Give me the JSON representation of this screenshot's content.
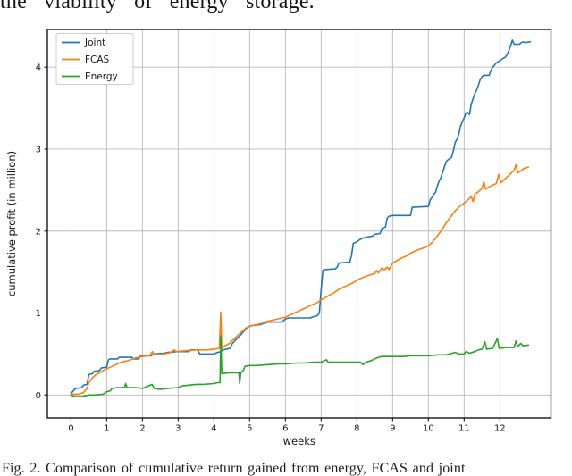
{
  "page": {
    "top_text_fragment": "the viability of energy storage.",
    "caption": "Fig. 2.  Comparison of cumulative return gained from energy, FCAS and joint"
  },
  "chart_data": {
    "type": "line",
    "title": "",
    "xlabel": "weeks",
    "ylabel": "cumulative profit (in million)",
    "xlim": [
      -0.66,
      13.43
    ],
    "ylim": [
      -0.28,
      4.46
    ],
    "xticks": [
      0,
      1,
      2,
      3,
      4,
      5,
      6,
      7,
      8,
      9,
      10,
      11,
      12
    ],
    "yticks": [
      0,
      1,
      2,
      3,
      4
    ],
    "grid": true,
    "legend_position": "upper-left",
    "colors": {
      "grid": "#b8b8b8",
      "spine": "#151515",
      "text": "#151515",
      "legend_border": "#cccccc"
    },
    "series": [
      {
        "name": "Joint",
        "color": "#1f77b4",
        "points": [
          [
            0,
            0.02
          ],
          [
            0.05,
            0.04
          ],
          [
            0.1,
            0.07
          ],
          [
            0.15,
            0.08
          ],
          [
            0.3,
            0.09
          ],
          [
            0.35,
            0.12
          ],
          [
            0.45,
            0.13
          ],
          [
            0.5,
            0.25
          ],
          [
            0.6,
            0.26
          ],
          [
            0.65,
            0.29
          ],
          [
            0.8,
            0.3
          ],
          [
            0.85,
            0.33
          ],
          [
            1.0,
            0.34
          ],
          [
            1.05,
            0.43
          ],
          [
            1.1,
            0.44
          ],
          [
            1.3,
            0.44
          ],
          [
            1.35,
            0.46
          ],
          [
            1.7,
            0.46
          ],
          [
            1.75,
            0.44
          ],
          [
            1.9,
            0.44
          ],
          [
            1.95,
            0.48
          ],
          [
            2.25,
            0.48
          ],
          [
            2.3,
            0.5
          ],
          [
            2.6,
            0.51
          ],
          [
            2.7,
            0.52
          ],
          [
            3.0,
            0.53
          ],
          [
            3.3,
            0.53
          ],
          [
            3.35,
            0.55
          ],
          [
            3.55,
            0.55
          ],
          [
            3.6,
            0.5
          ],
          [
            4.0,
            0.5
          ],
          [
            4.1,
            0.52
          ],
          [
            4.2,
            0.53
          ],
          [
            4.25,
            0.55
          ],
          [
            4.45,
            0.57
          ],
          [
            4.5,
            0.62
          ],
          [
            4.6,
            0.67
          ],
          [
            4.7,
            0.71
          ],
          [
            4.8,
            0.76
          ],
          [
            4.9,
            0.81
          ],
          [
            5.0,
            0.84
          ],
          [
            5.1,
            0.85
          ],
          [
            5.3,
            0.86
          ],
          [
            5.45,
            0.88
          ],
          [
            5.5,
            0.89
          ],
          [
            5.9,
            0.89
          ],
          [
            6.0,
            0.93
          ],
          [
            6.1,
            0.94
          ],
          [
            6.7,
            0.94
          ],
          [
            6.75,
            0.95
          ],
          [
            6.9,
            0.97
          ],
          [
            6.95,
            1.0
          ],
          [
            7.0,
            1.28
          ],
          [
            7.05,
            1.52
          ],
          [
            7.1,
            1.53
          ],
          [
            7.4,
            1.54
          ],
          [
            7.45,
            1.56
          ],
          [
            7.5,
            1.61
          ],
          [
            7.8,
            1.62
          ],
          [
            7.85,
            1.7
          ],
          [
            7.9,
            1.85
          ],
          [
            8.0,
            1.87
          ],
          [
            8.1,
            1.9
          ],
          [
            8.2,
            1.92
          ],
          [
            8.45,
            1.94
          ],
          [
            8.5,
            1.96
          ],
          [
            8.65,
            1.97
          ],
          [
            8.7,
            2.03
          ],
          [
            8.8,
            2.05
          ],
          [
            8.85,
            2.16
          ],
          [
            8.9,
            2.18
          ],
          [
            9.0,
            2.19
          ],
          [
            9.5,
            2.19
          ],
          [
            9.55,
            2.29
          ],
          [
            10.0,
            2.3
          ],
          [
            10.05,
            2.38
          ],
          [
            10.1,
            2.41
          ],
          [
            10.15,
            2.45
          ],
          [
            10.2,
            2.47
          ],
          [
            10.25,
            2.55
          ],
          [
            10.3,
            2.61
          ],
          [
            10.35,
            2.65
          ],
          [
            10.4,
            2.72
          ],
          [
            10.5,
            2.85
          ],
          [
            10.55,
            2.87
          ],
          [
            10.65,
            2.9
          ],
          [
            10.7,
            2.98
          ],
          [
            10.75,
            3.08
          ],
          [
            10.8,
            3.12
          ],
          [
            10.85,
            3.18
          ],
          [
            10.9,
            3.28
          ],
          [
            10.95,
            3.33
          ],
          [
            11.0,
            3.38
          ],
          [
            11.05,
            3.44
          ],
          [
            11.1,
            3.45
          ],
          [
            11.15,
            3.42
          ],
          [
            11.2,
            3.55
          ],
          [
            11.3,
            3.68
          ],
          [
            11.35,
            3.72
          ],
          [
            11.4,
            3.78
          ],
          [
            11.45,
            3.85
          ],
          [
            11.5,
            3.88
          ],
          [
            11.55,
            3.9
          ],
          [
            11.7,
            3.9
          ],
          [
            11.75,
            3.96
          ],
          [
            11.8,
            4.0
          ],
          [
            11.9,
            4.05
          ],
          [
            12.0,
            4.08
          ],
          [
            12.1,
            4.11
          ],
          [
            12.15,
            4.12
          ],
          [
            12.2,
            4.15
          ],
          [
            12.25,
            4.2
          ],
          [
            12.3,
            4.26
          ],
          [
            12.35,
            4.33
          ],
          [
            12.4,
            4.28
          ],
          [
            12.55,
            4.28
          ],
          [
            12.6,
            4.3
          ],
          [
            12.65,
            4.31
          ],
          [
            12.7,
            4.3
          ],
          [
            12.85,
            4.31
          ]
        ]
      },
      {
        "name": "FCAS",
        "color": "#ff7f0e",
        "points": [
          [
            0,
            0.01
          ],
          [
            0.2,
            0.01
          ],
          [
            0.35,
            0.03
          ],
          [
            0.45,
            0.08
          ],
          [
            0.5,
            0.15
          ],
          [
            0.6,
            0.21
          ],
          [
            0.7,
            0.25
          ],
          [
            0.8,
            0.27
          ],
          [
            0.9,
            0.3
          ],
          [
            1.0,
            0.32
          ],
          [
            1.2,
            0.36
          ],
          [
            1.4,
            0.4
          ],
          [
            1.6,
            0.42
          ],
          [
            1.8,
            0.45
          ],
          [
            2.0,
            0.47
          ],
          [
            2.2,
            0.48
          ],
          [
            2.28,
            0.53
          ],
          [
            2.32,
            0.49
          ],
          [
            2.6,
            0.5
          ],
          [
            2.8,
            0.52
          ],
          [
            2.88,
            0.55
          ],
          [
            2.95,
            0.53
          ],
          [
            3.2,
            0.54
          ],
          [
            3.5,
            0.55
          ],
          [
            3.8,
            0.55
          ],
          [
            4.0,
            0.56
          ],
          [
            4.15,
            0.57
          ],
          [
            4.19,
            1.01
          ],
          [
            4.22,
            0.57
          ],
          [
            4.3,
            0.6
          ],
          [
            4.4,
            0.62
          ],
          [
            4.5,
            0.66
          ],
          [
            4.6,
            0.7
          ],
          [
            4.7,
            0.74
          ],
          [
            4.8,
            0.78
          ],
          [
            4.9,
            0.82
          ],
          [
            5.0,
            0.84
          ],
          [
            5.2,
            0.86
          ],
          [
            5.4,
            0.88
          ],
          [
            5.5,
            0.9
          ],
          [
            5.7,
            0.92
          ],
          [
            5.9,
            0.94
          ],
          [
            6.0,
            0.95
          ],
          [
            6.2,
            0.99
          ],
          [
            6.4,
            1.03
          ],
          [
            6.5,
            1.05
          ],
          [
            6.7,
            1.09
          ],
          [
            6.9,
            1.13
          ],
          [
            7.0,
            1.16
          ],
          [
            7.2,
            1.21
          ],
          [
            7.4,
            1.26
          ],
          [
            7.5,
            1.29
          ],
          [
            7.7,
            1.33
          ],
          [
            7.9,
            1.37
          ],
          [
            8.0,
            1.4
          ],
          [
            8.2,
            1.44
          ],
          [
            8.4,
            1.47
          ],
          [
            8.5,
            1.48
          ],
          [
            8.55,
            1.52
          ],
          [
            8.6,
            1.49
          ],
          [
            8.7,
            1.55
          ],
          [
            8.75,
            1.52
          ],
          [
            8.85,
            1.56
          ],
          [
            8.9,
            1.53
          ],
          [
            9.0,
            1.61
          ],
          [
            9.2,
            1.66
          ],
          [
            9.4,
            1.7
          ],
          [
            9.5,
            1.73
          ],
          [
            9.7,
            1.77
          ],
          [
            9.9,
            1.8
          ],
          [
            10.0,
            1.82
          ],
          [
            10.1,
            1.86
          ],
          [
            10.2,
            1.91
          ],
          [
            10.3,
            1.97
          ],
          [
            10.4,
            2.03
          ],
          [
            10.5,
            2.1
          ],
          [
            10.6,
            2.16
          ],
          [
            10.7,
            2.22
          ],
          [
            10.8,
            2.27
          ],
          [
            10.9,
            2.31
          ],
          [
            11.0,
            2.34
          ],
          [
            11.1,
            2.38
          ],
          [
            11.2,
            2.42
          ],
          [
            11.25,
            2.36
          ],
          [
            11.3,
            2.45
          ],
          [
            11.4,
            2.48
          ],
          [
            11.5,
            2.52
          ],
          [
            11.55,
            2.6
          ],
          [
            11.6,
            2.51
          ],
          [
            11.7,
            2.54
          ],
          [
            11.8,
            2.56
          ],
          [
            11.9,
            2.58
          ],
          [
            11.97,
            2.69
          ],
          [
            12.03,
            2.59
          ],
          [
            12.1,
            2.62
          ],
          [
            12.2,
            2.66
          ],
          [
            12.3,
            2.7
          ],
          [
            12.4,
            2.74
          ],
          [
            12.45,
            2.81
          ],
          [
            12.5,
            2.71
          ],
          [
            12.6,
            2.74
          ],
          [
            12.7,
            2.77
          ],
          [
            12.8,
            2.78
          ]
        ]
      },
      {
        "name": "Energy",
        "color": "#2ca02c",
        "points": [
          [
            0,
            0.0
          ],
          [
            0.1,
            -0.02
          ],
          [
            0.3,
            -0.02
          ],
          [
            0.5,
            0.0
          ],
          [
            0.7,
            0.0
          ],
          [
            0.9,
            0.01
          ],
          [
            1.0,
            0.04
          ],
          [
            1.1,
            0.05
          ],
          [
            1.15,
            0.08
          ],
          [
            1.3,
            0.09
          ],
          [
            1.5,
            0.09
          ],
          [
            1.53,
            0.14
          ],
          [
            1.57,
            0.09
          ],
          [
            1.8,
            0.09
          ],
          [
            2.0,
            0.08
          ],
          [
            2.27,
            0.13
          ],
          [
            2.33,
            0.08
          ],
          [
            2.5,
            0.07
          ],
          [
            2.7,
            0.08
          ],
          [
            3.0,
            0.09
          ],
          [
            3.1,
            0.11
          ],
          [
            3.3,
            0.12
          ],
          [
            3.5,
            0.13
          ],
          [
            3.7,
            0.13
          ],
          [
            4.0,
            0.14
          ],
          [
            4.1,
            0.15
          ],
          [
            4.17,
            0.15
          ],
          [
            4.19,
            0.72
          ],
          [
            4.22,
            0.26
          ],
          [
            4.4,
            0.27
          ],
          [
            4.6,
            0.27
          ],
          [
            4.7,
            0.27
          ],
          [
            4.72,
            0.14
          ],
          [
            4.75,
            0.27
          ],
          [
            4.82,
            0.3
          ],
          [
            4.87,
            0.35
          ],
          [
            5.0,
            0.36
          ],
          [
            5.2,
            0.36
          ],
          [
            5.5,
            0.37
          ],
          [
            5.8,
            0.38
          ],
          [
            6.0,
            0.38
          ],
          [
            6.3,
            0.39
          ],
          [
            6.5,
            0.39
          ],
          [
            6.8,
            0.4
          ],
          [
            7.0,
            0.4
          ],
          [
            7.15,
            0.43
          ],
          [
            7.2,
            0.4
          ],
          [
            7.6,
            0.4
          ],
          [
            7.9,
            0.4
          ],
          [
            8.1,
            0.4
          ],
          [
            8.17,
            0.37
          ],
          [
            8.25,
            0.4
          ],
          [
            8.4,
            0.42
          ],
          [
            8.5,
            0.44
          ],
          [
            8.6,
            0.46
          ],
          [
            8.7,
            0.47
          ],
          [
            9.0,
            0.47
          ],
          [
            9.3,
            0.47
          ],
          [
            9.5,
            0.48
          ],
          [
            10.0,
            0.48
          ],
          [
            10.3,
            0.49
          ],
          [
            10.5,
            0.49
          ],
          [
            10.75,
            0.52
          ],
          [
            10.85,
            0.5
          ],
          [
            11.0,
            0.5
          ],
          [
            11.05,
            0.53
          ],
          [
            11.15,
            0.51
          ],
          [
            11.3,
            0.53
          ],
          [
            11.4,
            0.55
          ],
          [
            11.5,
            0.56
          ],
          [
            11.58,
            0.65
          ],
          [
            11.63,
            0.56
          ],
          [
            11.8,
            0.57
          ],
          [
            11.93,
            0.69
          ],
          [
            11.98,
            0.57
          ],
          [
            12.2,
            0.58
          ],
          [
            12.4,
            0.58
          ],
          [
            12.45,
            0.66
          ],
          [
            12.5,
            0.59
          ],
          [
            12.58,
            0.63
          ],
          [
            12.65,
            0.6
          ],
          [
            12.8,
            0.61
          ]
        ]
      }
    ]
  }
}
